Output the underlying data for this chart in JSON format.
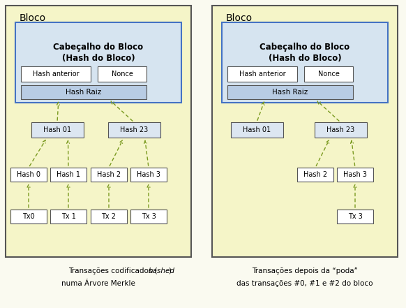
{
  "bg_color": "#fafaf0",
  "outer_bg": "#f5f5c8",
  "header_bg": "#d6e4f0",
  "hashraiz_bg": "#b8cce4",
  "hash_node_bg": "#dce6f1",
  "tx_bg": "#ffffff",
  "border_color": "#555555",
  "blue_border": "#4472c4",
  "arrow_color": "#7a9a20",
  "text_color": "#000000",
  "title_left": "Bloco",
  "title_right": "Bloco",
  "caption_left_plain": "Transações codificados (",
  "caption_left_italic": "hashed",
  "caption_left_close": ")",
  "caption_left2": "numa Árvore Merkle",
  "caption_right1": "Transações depois da “poda”",
  "caption_right2": "das transações #0, #1 e #2 do bloco",
  "header_text1": "Cabeçalho do Bloco",
  "header_text2": "(Hash do Bloco)",
  "hash_anterior": "Hash anterior",
  "nonce": "Nonce",
  "hash_raiz": "Hash Raiz",
  "hash01": "Hash 01",
  "hash23": "Hash 23",
  "hash0": "Hash 0",
  "hash1": "Hash 1",
  "hash2": "Hash 2",
  "hash3": "Hash 3",
  "tx0": "Tx0",
  "tx1": "Tx 1",
  "tx2": "Tx 2",
  "tx3": "Tx 3",
  "figsize": [
    5.82,
    4.41
  ],
  "dpi": 100
}
